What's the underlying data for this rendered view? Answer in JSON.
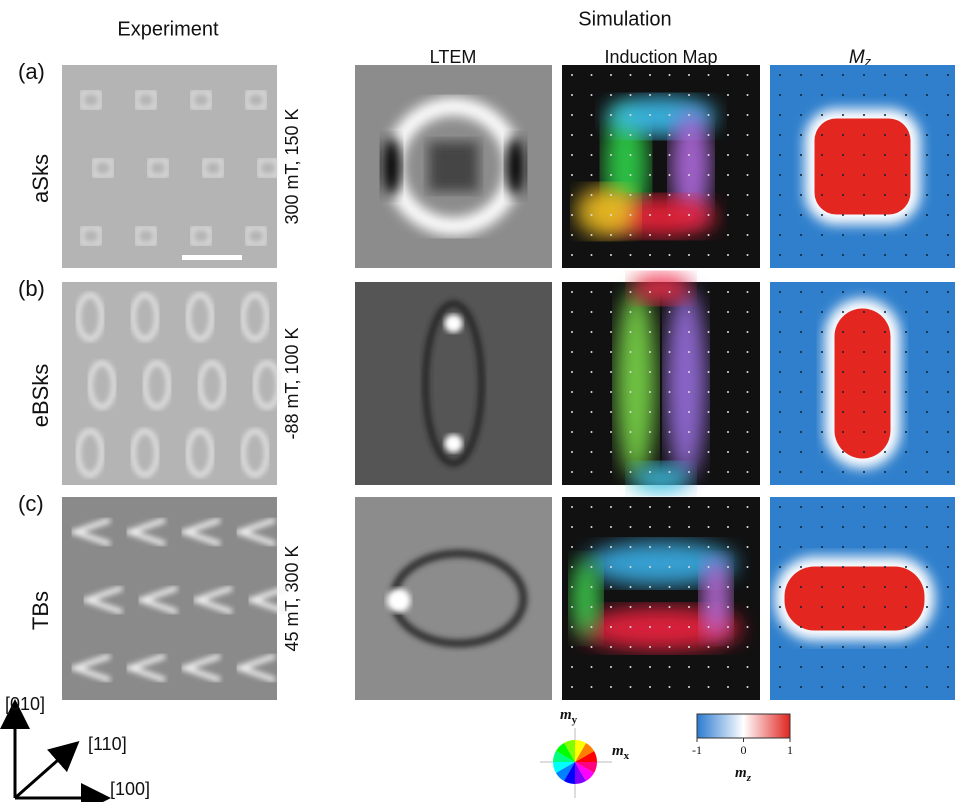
{
  "headers": {
    "experiment": "Experiment",
    "simulation": "Simulation",
    "ltem": "LTEM",
    "induction_map": "Induction Map",
    "mz": {
      "symbol": "M",
      "subscript": "z"
    }
  },
  "rows": [
    {
      "label": "(a)",
      "name": "aSks",
      "conditions": "300 mT, 150 K"
    },
    {
      "label": "(b)",
      "name": "eBSks",
      "conditions": "-88 mT, 100 K"
    },
    {
      "label": "(c)",
      "name": "TBs",
      "conditions": "45 mT, 300 K"
    }
  ],
  "axes": {
    "y": "[010]",
    "diagonal": "[110]",
    "x": "[100]"
  },
  "color_wheel": {
    "y_label": {
      "symbol": "m",
      "subscript": "y"
    },
    "x_label": {
      "symbol": "m",
      "subscript": "x"
    }
  },
  "colorbar": {
    "lim": [
      -1,
      1
    ],
    "ticks": [
      -1,
      0,
      1
    ],
    "label": {
      "symbol": "m",
      "subscript": "z"
    }
  }
}
